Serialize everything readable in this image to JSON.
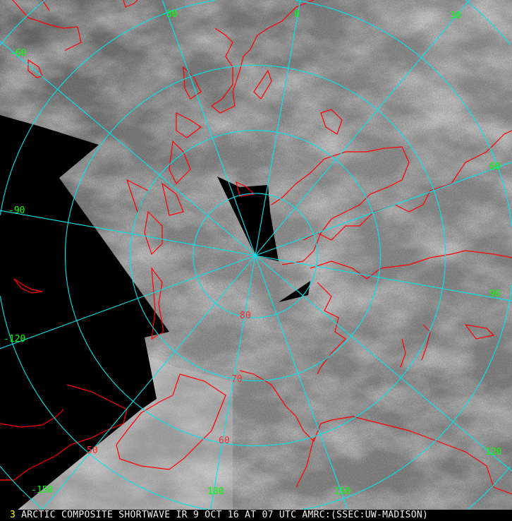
{
  "image": {
    "caption": "ARCTIC COMPOSITE SHORTWAVE IR 9 OCT 16 AT 07 UTC AMRC:(SSEC:UW-MADISON)",
    "frame_number": "3"
  },
  "colors": {
    "grid": "#00e5ee",
    "coastline": "#ff0000",
    "longitude_labels": "#00ff00",
    "latitude_labels": "#ff2a2a",
    "no_data": "#000000"
  },
  "longitude_labels": [
    "-30",
    "0",
    "30",
    "-60",
    "60",
    "-90",
    "90",
    "-120",
    "120",
    "-150",
    "180",
    "150"
  ],
  "latitude_labels": [
    "80",
    "70",
    "60",
    "50"
  ]
}
